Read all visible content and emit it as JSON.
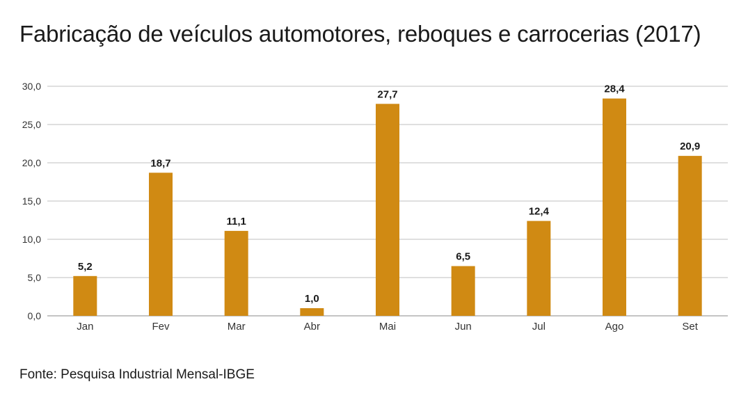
{
  "title": "Fabricação de veículos automotores, reboques e carrocerias (2017)",
  "source": "Fonte: Pesquisa Industrial Mensal-IBGE",
  "chart_data": {
    "type": "bar",
    "categories": [
      "Jan",
      "Fev",
      "Mar",
      "Abr",
      "Mai",
      "Jun",
      "Jul",
      "Ago",
      "Set"
    ],
    "values": [
      5.2,
      18.7,
      11.1,
      1.0,
      27.7,
      6.5,
      12.4,
      28.4,
      20.9
    ],
    "value_labels": [
      "5,2",
      "18,7",
      "11,1",
      "1,0",
      "27,7",
      "6,5",
      "12,4",
      "28,4",
      "20,9"
    ],
    "yticks": [
      0,
      5,
      10,
      15,
      20,
      25,
      30
    ],
    "ytick_labels": [
      "0,0",
      "5,0",
      "10,0",
      "15,0",
      "20,0",
      "25,0",
      "30,0"
    ],
    "ylim": [
      0,
      30
    ],
    "grid": true,
    "bar_color": "#D08A13",
    "grid_color": "#BFBFBF"
  }
}
